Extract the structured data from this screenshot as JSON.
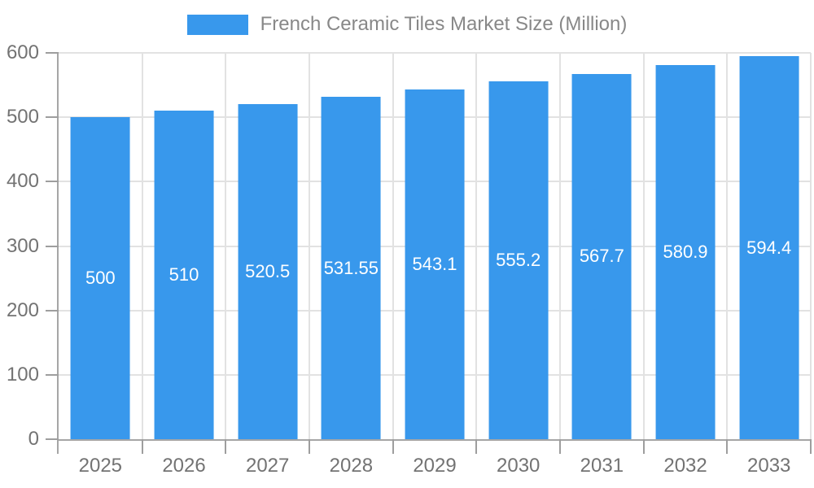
{
  "legend": {
    "label": "French Ceramic Tiles Market Size (Million)"
  },
  "chart_data": {
    "type": "bar",
    "title": "French Ceramic Tiles Market Size (Million)",
    "series_name": "French Ceramic Tiles Market Size (Million)",
    "categories": [
      "2025",
      "2026",
      "2027",
      "2028",
      "2029",
      "2030",
      "2031",
      "2032",
      "2033"
    ],
    "values": [
      500,
      510,
      520.5,
      531.55,
      543.1,
      555.2,
      567.7,
      580.9,
      594.4
    ],
    "value_labels": [
      "500",
      "510",
      "520.5",
      "531.55",
      "543.1",
      "555.2",
      "567.7",
      "580.9",
      "594.4"
    ],
    "xlabel": "",
    "ylabel": "",
    "ylim": [
      0,
      600
    ],
    "y_ticks": [
      0,
      100,
      200,
      300,
      400,
      500,
      600
    ],
    "grid": true,
    "legend_position": "top"
  },
  "colors": {
    "bar": "#3898ec",
    "bar_label": "#ffffff",
    "grid": "#e2e2e2",
    "axis": "#a6a6a6",
    "tick": "#9e9e9e",
    "tick_text": "#737373",
    "legend_text": "#888888",
    "background": "#ffffff"
  }
}
